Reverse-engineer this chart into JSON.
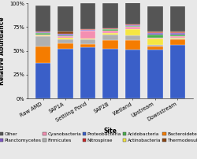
{
  "categories": [
    "Raw AMD",
    "SAP1A",
    "Settling Pond",
    "SAP2B",
    "Wetland",
    "Upstream",
    "Downstream"
  ],
  "xlabel": "Site",
  "ylabel": "Relative Abundance",
  "ylim": [
    0,
    1.0
  ],
  "yticks": [
    0,
    0.25,
    0.5,
    0.75,
    1.0
  ],
  "ytick_labels": [
    "0%",
    "25%",
    "50%",
    "75%",
    "100%"
  ],
  "background_color": "#e8e8e8",
  "series": [
    {
      "label": "Proteobacteria",
      "color": "#3a5fc8",
      "values": [
        0.37,
        0.52,
        0.54,
        0.52,
        0.51,
        0.51,
        0.56
      ]
    },
    {
      "label": "Bacteroidetes",
      "color": "#f57c00",
      "values": [
        0.18,
        0.06,
        0.03,
        0.09,
        0.1,
        0.04,
        0.06
      ]
    },
    {
      "label": "Firmicutes",
      "color": "#b0b0b0",
      "values": [
        0.1,
        0.04,
        0.05,
        0.06,
        0.05,
        0.01,
        0.01
      ]
    },
    {
      "label": "Actinobacteria",
      "color": "#f5e642",
      "values": [
        0.015,
        0.015,
        0.01,
        0.015,
        0.07,
        0.07,
        0.01
      ]
    },
    {
      "label": "Cyanobacteria",
      "color": "#f48fb1",
      "values": [
        0.005,
        0.02,
        0.08,
        0.03,
        0.02,
        0.01,
        0.01
      ]
    },
    {
      "label": "Acidobacteria",
      "color": "#4caf50",
      "values": [
        0.02,
        0.01,
        0.005,
        0.01,
        0.01,
        0.03,
        0.02
      ]
    },
    {
      "label": "Planctomycetes",
      "color": "#7e57c2",
      "values": [
        0.005,
        0.01,
        0.005,
        0.005,
        0.01,
        0.02,
        0.02
      ]
    },
    {
      "label": "Nitrospirae",
      "color": "#c62828",
      "values": [
        0.005,
        0.005,
        0.005,
        0.005,
        0.005,
        0.005,
        0.005
      ]
    },
    {
      "label": "Thermodesulfobacteria",
      "color": "#8b4513",
      "values": [
        0.005,
        0.02,
        0.005,
        0.005,
        0.005,
        0.005,
        0.005
      ]
    },
    {
      "label": "Other",
      "color": "#555555",
      "values": [
        0.27,
        0.27,
        0.27,
        0.26,
        0.24,
        0.27,
        0.27
      ]
    }
  ],
  "legend_display": [
    {
      "label": "Other",
      "color": "#555555"
    },
    {
      "label": "Planctomycetes",
      "color": "#7e57c2"
    },
    {
      "label": "Cyanobacteria",
      "color": "#f48fb1"
    },
    {
      "label": "Firmicutes",
      "color": "#b0b0b0"
    },
    {
      "label": "Proteobacteria",
      "color": "#3a5fc8"
    },
    {
      "label": "Nitrospirae",
      "color": "#c62828"
    },
    {
      "label": "Acidobacteria",
      "color": "#4caf50"
    },
    {
      "label": "Actinobacteria",
      "color": "#f5e642"
    },
    {
      "label": "Bacteroidetes",
      "color": "#f57c00"
    },
    {
      "label": "Thermodesulfobacteria",
      "color": "#8b4513"
    }
  ],
  "bar_width": 0.7,
  "axis_fontsize": 5.5,
  "tick_fontsize": 4.8,
  "legend_fontsize": 4.2
}
